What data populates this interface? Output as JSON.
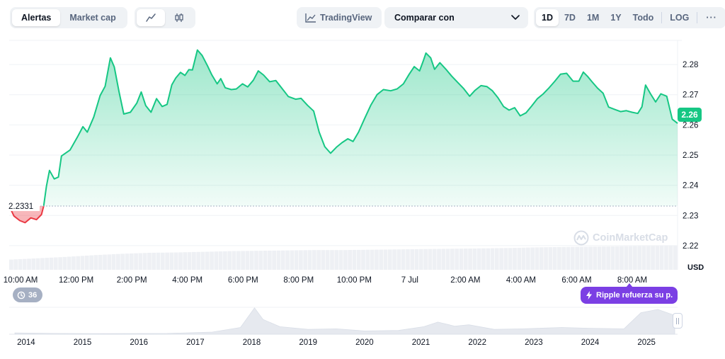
{
  "toolbar": {
    "view_tabs": [
      {
        "label": "Alertas",
        "active": true
      },
      {
        "label": "Market cap",
        "active": false
      }
    ],
    "chart_types": [
      {
        "icon": "line-chart-icon",
        "active": true
      },
      {
        "icon": "candlestick-icon",
        "active": false
      }
    ],
    "tradingview_label": "TradingView",
    "compare_label": "Comparar con",
    "ranges": [
      {
        "label": "1D",
        "active": true
      },
      {
        "label": "7D",
        "active": false
      },
      {
        "label": "1M",
        "active": false
      },
      {
        "label": "1Y",
        "active": false
      },
      {
        "label": "Todo",
        "active": false
      }
    ],
    "log_label": "LOG",
    "more_label": "···"
  },
  "price_badge": "2.26",
  "currency_label": "USD",
  "watermark": "CoinMarketCap",
  "events_badge": {
    "count": "36"
  },
  "news_pill": {
    "label": "Ripple refuerza su p..."
  },
  "colors": {
    "up": "#16c784",
    "down": "#ea3943",
    "accent": "#7b3fe4"
  },
  "chart_data": {
    "type": "area",
    "currency": "USD",
    "baseline": 2.2331,
    "baseline_label": "2.2331",
    "current_price": 2.26,
    "y_range": [
      2.212,
      2.288
    ],
    "y_ticks": [
      2.22,
      2.23,
      2.24,
      2.25,
      2.26,
      2.27,
      2.28
    ],
    "y_tick_labels": [
      "2.22",
      "2.23",
      "2.24",
      "2.25",
      "2.26",
      "2.27",
      "2.28"
    ],
    "time_range_hours": [
      -0.41,
      23.63
    ],
    "x_ticks": [
      {
        "t": 0,
        "label": "10:00 AM"
      },
      {
        "t": 2,
        "label": "12:00 PM"
      },
      {
        "t": 4,
        "label": "2:00 PM"
      },
      {
        "t": 6,
        "label": "4:00 PM"
      },
      {
        "t": 8,
        "label": "6:00 PM"
      },
      {
        "t": 10,
        "label": "8:00 PM"
      },
      {
        "t": 12,
        "label": "10:00 PM"
      },
      {
        "t": 14,
        "label": "7 Jul"
      },
      {
        "t": 16,
        "label": "2:00 AM"
      },
      {
        "t": 18,
        "label": "4:00 AM"
      },
      {
        "t": 20,
        "label": "6:00 AM"
      },
      {
        "t": 22,
        "label": "8:00 AM"
      }
    ],
    "series": [
      {
        "name": "Price",
        "points": [
          [
            -0.41,
            2.2331
          ],
          [
            -0.24,
            2.2298
          ],
          [
            -0.03,
            2.2283
          ],
          [
            0.16,
            2.2276
          ],
          [
            0.37,
            2.2292
          ],
          [
            0.57,
            2.2286
          ],
          [
            0.75,
            2.2303
          ],
          [
            0.83,
            2.2331
          ],
          [
            0.93,
            2.2397
          ],
          [
            1.04,
            2.2449
          ],
          [
            1.21,
            2.2421
          ],
          [
            1.36,
            2.2427
          ],
          [
            1.47,
            2.2497
          ],
          [
            1.78,
            2.2517
          ],
          [
            2.04,
            2.2559
          ],
          [
            2.24,
            2.2594
          ],
          [
            2.4,
            2.2576
          ],
          [
            2.63,
            2.2626
          ],
          [
            2.86,
            2.2697
          ],
          [
            3.04,
            2.2728
          ],
          [
            3.23,
            2.2822
          ],
          [
            3.37,
            2.2792
          ],
          [
            3.54,
            2.271
          ],
          [
            3.71,
            2.2636
          ],
          [
            3.95,
            2.2642
          ],
          [
            4.18,
            2.2672
          ],
          [
            4.34,
            2.2709
          ],
          [
            4.5,
            2.2664
          ],
          [
            4.69,
            2.2642
          ],
          [
            4.89,
            2.2687
          ],
          [
            5.09,
            2.2661
          ],
          [
            5.27,
            2.2668
          ],
          [
            5.44,
            2.2733
          ],
          [
            5.58,
            2.2755
          ],
          [
            5.75,
            2.2774
          ],
          [
            5.91,
            2.2764
          ],
          [
            6.05,
            2.2783
          ],
          [
            6.18,
            2.2782
          ],
          [
            6.36,
            2.2848
          ],
          [
            6.53,
            2.283
          ],
          [
            6.72,
            2.2796
          ],
          [
            6.87,
            2.2767
          ],
          [
            7.07,
            2.2736
          ],
          [
            7.2,
            2.2753
          ],
          [
            7.36,
            2.2723
          ],
          [
            7.58,
            2.2717
          ],
          [
            7.76,
            2.2719
          ],
          [
            7.98,
            2.2736
          ],
          [
            8.17,
            2.2726
          ],
          [
            8.37,
            2.2748
          ],
          [
            8.55,
            2.2779
          ],
          [
            8.74,
            2.2765
          ],
          [
            8.96,
            2.2743
          ],
          [
            9.18,
            2.2747
          ],
          [
            9.41,
            2.272
          ],
          [
            9.63,
            2.2694
          ],
          [
            9.89,
            2.2685
          ],
          [
            10.09,
            2.2688
          ],
          [
            10.32,
            2.2665
          ],
          [
            10.54,
            2.2646
          ],
          [
            10.74,
            2.2576
          ],
          [
            10.94,
            2.2528
          ],
          [
            11.15,
            2.2506
          ],
          [
            11.36,
            2.2526
          ],
          [
            11.56,
            2.2541
          ],
          [
            11.77,
            2.2554
          ],
          [
            11.96,
            2.2545
          ],
          [
            12.16,
            2.2577
          ],
          [
            12.37,
            2.262
          ],
          [
            12.6,
            2.2666
          ],
          [
            12.82,
            2.27
          ],
          [
            13.05,
            2.2717
          ],
          [
            13.31,
            2.2713
          ],
          [
            13.54,
            2.2719
          ],
          [
            13.77,
            2.2736
          ],
          [
            13.97,
            2.2767
          ],
          [
            14.16,
            2.2793
          ],
          [
            14.35,
            2.2779
          ],
          [
            14.48,
            2.2811
          ],
          [
            14.58,
            2.2838
          ],
          [
            14.75,
            2.2822
          ],
          [
            14.89,
            2.2784
          ],
          [
            15.08,
            2.2806
          ],
          [
            15.3,
            2.2784
          ],
          [
            15.5,
            2.2762
          ],
          [
            15.72,
            2.2741
          ],
          [
            15.93,
            2.2721
          ],
          [
            16.15,
            2.2695
          ],
          [
            16.34,
            2.2714
          ],
          [
            16.56,
            2.273
          ],
          [
            16.77,
            2.2727
          ],
          [
            16.97,
            2.2713
          ],
          [
            17.17,
            2.269
          ],
          [
            17.37,
            2.2661
          ],
          [
            17.57,
            2.2649
          ],
          [
            17.77,
            2.2657
          ],
          [
            17.97,
            2.263
          ],
          [
            18.18,
            2.264
          ],
          [
            18.38,
            2.2662
          ],
          [
            18.59,
            2.2687
          ],
          [
            18.79,
            2.2702
          ],
          [
            19.01,
            2.2723
          ],
          [
            19.21,
            2.2744
          ],
          [
            19.42,
            2.2768
          ],
          [
            19.64,
            2.2771
          ],
          [
            19.87,
            2.2745
          ],
          [
            20.08,
            2.2745
          ],
          [
            20.24,
            2.2775
          ],
          [
            20.4,
            2.276
          ],
          [
            20.55,
            2.2743
          ],
          [
            20.75,
            2.2722
          ],
          [
            20.95,
            2.2705
          ],
          [
            21.15,
            2.2659
          ],
          [
            21.37,
            2.2651
          ],
          [
            21.58,
            2.2644
          ],
          [
            21.79,
            2.2647
          ],
          [
            21.99,
            2.2642
          ],
          [
            22.2,
            2.2638
          ],
          [
            22.35,
            2.266
          ],
          [
            22.48,
            2.2732
          ],
          [
            22.65,
            2.2704
          ],
          [
            22.84,
            2.2676
          ],
          [
            23.03,
            2.2703
          ],
          [
            23.24,
            2.2695
          ],
          [
            23.44,
            2.2619
          ],
          [
            23.63,
            2.2605
          ]
        ]
      }
    ],
    "volume_relative": [
      0.3,
      0.34,
      0.38,
      0.43,
      0.47,
      0.5,
      0.51,
      0.53,
      0.55,
      0.56,
      0.57,
      0.58,
      0.58,
      0.59,
      0.6,
      0.61,
      0.62,
      0.63,
      0.64,
      0.66,
      0.67,
      0.68,
      0.69,
      0.7,
      0.71
    ],
    "navigator": {
      "year_labels": [
        "2014",
        "2015",
        "2016",
        "2017",
        "2018",
        "2019",
        "2020",
        "2021",
        "2022",
        "2023",
        "2024",
        "2025"
      ],
      "year_start": 2013.7,
      "year_end": 2025.55,
      "history": [
        [
          2013.8,
          0.05
        ],
        [
          2014.5,
          0.03
        ],
        [
          2015.5,
          0.02
        ],
        [
          2016.5,
          0.03
        ],
        [
          2017.3,
          0.08
        ],
        [
          2017.8,
          0.25
        ],
        [
          2018.05,
          0.98
        ],
        [
          2018.2,
          0.55
        ],
        [
          2018.5,
          0.28
        ],
        [
          2019.0,
          0.18
        ],
        [
          2019.5,
          0.2
        ],
        [
          2020.0,
          0.12
        ],
        [
          2020.6,
          0.14
        ],
        [
          2021.05,
          0.28
        ],
        [
          2021.3,
          0.45
        ],
        [
          2021.6,
          0.3
        ],
        [
          2021.85,
          0.35
        ],
        [
          2022.3,
          0.18
        ],
        [
          2022.8,
          0.2
        ],
        [
          2023.5,
          0.25
        ],
        [
          2024.0,
          0.22
        ],
        [
          2024.6,
          0.2
        ],
        [
          2024.9,
          0.8
        ],
        [
          2025.2,
          0.92
        ],
        [
          2025.5,
          0.7
        ]
      ]
    }
  }
}
